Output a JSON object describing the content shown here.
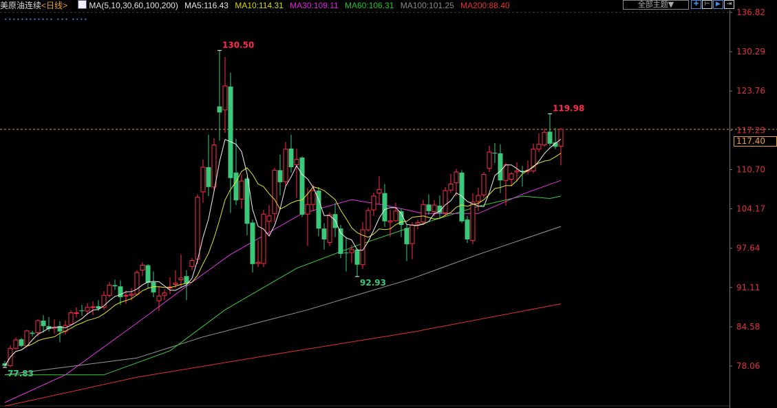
{
  "header": {
    "title": "美原油连续",
    "period": "<日线>",
    "ma_params": "MA(5,10,30,60,100,200)",
    "ma_values": [
      {
        "label": "MA5:116.43",
        "color": "#e6e6e6"
      },
      {
        "label": "MA10:114.31",
        "color": "#d8d800"
      },
      {
        "label": "MA30:109.11",
        "color": "#e020e0"
      },
      {
        "label": "MA60:106.31",
        "color": "#22c322"
      },
      {
        "label": "MA100:101.25",
        "color": "#8a8a8a"
      },
      {
        "label": "MA200:88.40",
        "color": "#e83030"
      }
    ],
    "theme_button": "全部主题▼",
    "tool_icons": [
      "crosshair-icon",
      "interval-icon",
      "play-icon",
      "exit-icon"
    ],
    "dots": "••••••••••••   •••   ••••"
  },
  "colors": {
    "up": "#ff2d4b",
    "down": "#3cc87a",
    "axis_text": "#e03040",
    "last_price_line": "#e8a030",
    "ma5": "#f0f0f0",
    "ma10": "#e5e52a",
    "ma30": "#e536e5",
    "ma60": "#3ad13a",
    "ma100": "#9a9a9a",
    "ma200": "#e53030"
  },
  "chart_data": {
    "type": "candlestick",
    "ylim": [
      72.5,
      136.82
    ],
    "y_ticks": [
      "136.82",
      "130.29",
      "123.76",
      "117.23",
      "110.70",
      "104.17",
      "97.64",
      "91.11",
      "84.58",
      "78.06"
    ],
    "last_price": "117.40",
    "annotations": [
      {
        "text": "130.50",
        "bar": 40,
        "price": 130.5,
        "kind": "high"
      },
      {
        "text": "119.98",
        "bar": 100,
        "price": 119.98,
        "kind": "high"
      },
      {
        "text": "92.93",
        "bar": 65,
        "price": 92.93,
        "kind": "low"
      },
      {
        "text": "77.83",
        "bar": 1,
        "price": 77.83,
        "kind": "low"
      }
    ],
    "ohlc": [
      [
        78.5,
        78.9,
        77.83,
        78.1
      ],
      [
        78.1,
        81.5,
        77.9,
        81.0
      ],
      [
        81.0,
        82.8,
        80.8,
        82.4
      ],
      [
        82.5,
        82.7,
        81.2,
        81.4
      ],
      [
        81.4,
        84.1,
        81.3,
        83.9
      ],
      [
        83.6,
        83.9,
        83.0,
        83.4
      ],
      [
        83.6,
        85.8,
        83.0,
        85.6
      ],
      [
        85.6,
        86.5,
        83.6,
        84.7
      ],
      [
        84.7,
        86.2,
        83.8,
        84.2
      ],
      [
        84.3,
        85.8,
        83.4,
        84.5
      ],
      [
        84.7,
        85.5,
        82.0,
        83.8
      ],
      [
        83.8,
        85.6,
        83.3,
        84.8
      ],
      [
        85.0,
        87.3,
        84.8,
        86.9
      ],
      [
        86.8,
        87.8,
        86.1,
        86.9
      ],
      [
        87.3,
        88.2,
        86.4,
        87.2
      ],
      [
        87.2,
        88.5,
        86.6,
        87.8
      ],
      [
        87.8,
        88.8,
        86.5,
        87.9
      ],
      [
        88.0,
        89.0,
        87.2,
        87.6
      ],
      [
        87.8,
        90.5,
        87.4,
        89.8
      ],
      [
        89.8,
        92.0,
        89.5,
        91.5
      ],
      [
        91.5,
        92.4,
        90.7,
        91.3
      ],
      [
        91.3,
        92.3,
        88.2,
        89.5
      ],
      [
        89.7,
        90.6,
        88.4,
        89.8
      ],
      [
        89.8,
        91.0,
        89.0,
        90.0
      ],
      [
        90.0,
        94.0,
        89.7,
        93.6
      ],
      [
        94.0,
        95.3,
        93.0,
        94.8
      ],
      [
        94.8,
        95.0,
        91.0,
        91.9
      ],
      [
        92.0,
        93.8,
        89.5,
        90.3
      ],
      [
        88.9,
        91.3,
        87.2,
        89.7
      ],
      [
        89.8,
        90.8,
        89.0,
        90.2
      ],
      [
        91.0,
        92.8,
        90.0,
        91.2
      ],
      [
        91.6,
        94.0,
        91.0,
        91.8
      ],
      [
        92.4,
        96.6,
        91.0,
        92.7
      ],
      [
        93.0,
        94.0,
        89.0,
        91.8
      ],
      [
        94.6,
        96.0,
        94.0,
        95.6
      ],
      [
        95.8,
        106.6,
        95.0,
        106.1
      ],
      [
        107.0,
        112.4,
        105.2,
        111.1
      ],
      [
        111.1,
        116.5,
        106.3,
        107.8
      ],
      [
        107.8,
        115.9,
        107.0,
        114.8
      ],
      [
        121.2,
        130.5,
        115.5,
        120.2
      ],
      [
        120.6,
        129.4,
        116.8,
        124.6
      ],
      [
        124.5,
        126.8,
        103.5,
        109.3
      ],
      [
        110.2,
        115.8,
        104.8,
        105.6
      ],
      [
        105.8,
        109.9,
        104.2,
        108.8
      ],
      [
        109.2,
        109.5,
        99.8,
        101.7
      ],
      [
        101.9,
        102.4,
        93.6,
        95.0
      ],
      [
        95.1,
        98.9,
        94.5,
        95.3
      ],
      [
        95.1,
        104.0,
        94.5,
        103.3
      ],
      [
        102.1,
        104.8,
        99.9,
        103.0
      ],
      [
        103.4,
        111.0,
        102.0,
        110.6
      ],
      [
        110.6,
        113.2,
        106.4,
        108.6
      ],
      [
        108.7,
        115.3,
        107.9,
        114.1
      ],
      [
        114.2,
        116.5,
        110.2,
        111.1
      ],
      [
        111.5,
        114.2,
        106.0,
        112.4
      ],
      [
        112.7,
        112.9,
        102.8,
        103.2
      ],
      [
        103.3,
        107.6,
        98.0,
        104.9
      ],
      [
        104.9,
        108.2,
        103.8,
        107.2
      ],
      [
        107.2,
        107.8,
        99.6,
        100.9
      ],
      [
        100.9,
        101.8,
        97.4,
        99.1
      ],
      [
        98.6,
        103.6,
        98.0,
        103.2
      ],
      [
        103.3,
        105.2,
        99.5,
        101.0
      ],
      [
        100.9,
        101.5,
        96.0,
        96.7
      ],
      [
        96.9,
        99.5,
        93.8,
        96.8
      ],
      [
        96.9,
        98.2,
        95.2,
        97.4
      ],
      [
        97.4,
        97.6,
        92.93,
        94.9
      ],
      [
        94.9,
        102.0,
        94.2,
        100.7
      ],
      [
        100.7,
        104.4,
        100.4,
        103.9
      ],
      [
        104.0,
        106.9,
        103.0,
        106.3
      ],
      [
        106.8,
        109.6,
        105.0,
        107.4
      ],
      [
        106.8,
        108.3,
        101.2,
        102.1
      ],
      [
        102.0,
        104.0,
        99.5,
        102.2
      ],
      [
        102.2,
        105.2,
        102.0,
        103.8
      ],
      [
        103.8,
        104.2,
        99.5,
        101.5
      ],
      [
        101.0,
        101.5,
        95.5,
        98.3
      ],
      [
        98.4,
        102.0,
        95.8,
        101.5
      ],
      [
        101.6,
        102.4,
        100.8,
        101.9
      ],
      [
        102.0,
        105.7,
        101.5,
        104.9
      ],
      [
        104.9,
        106.6,
        103.2,
        103.8
      ],
      [
        103.7,
        105.6,
        103.0,
        104.8
      ],
      [
        104.7,
        106.4,
        102.5,
        103.5
      ],
      [
        103.5,
        107.8,
        102.8,
        107.2
      ],
      [
        107.3,
        110.0,
        106.8,
        108.3
      ],
      [
        108.5,
        110.8,
        106.3,
        110.3
      ],
      [
        110.2,
        110.6,
        101.8,
        102.1
      ],
      [
        102.4,
        103.0,
        98.5,
        99.1
      ],
      [
        98.9,
        106.8,
        98.3,
        105.3
      ],
      [
        105.4,
        107.7,
        103.8,
        106.4
      ],
      [
        106.5,
        110.3,
        106.0,
        109.9
      ],
      [
        110.9,
        114.7,
        110.3,
        113.6
      ],
      [
        113.5,
        115.1,
        111.8,
        113.4
      ],
      [
        113.4,
        114.9,
        106.8,
        108.9
      ],
      [
        108.9,
        111.8,
        104.7,
        111.5
      ],
      [
        109.1,
        110.3,
        107.9,
        110.0
      ],
      [
        110.3,
        111.9,
        108.7,
        110.5
      ],
      [
        110.5,
        111.3,
        107.9,
        110.3
      ],
      [
        110.4,
        112.2,
        109.9,
        110.6
      ],
      [
        110.5,
        115.0,
        110.1,
        114.1
      ],
      [
        114.1,
        116.7,
        113.6,
        114.9
      ],
      [
        114.8,
        117.5,
        114.5,
        116.9
      ],
      [
        117.0,
        119.98,
        114.6,
        115.0
      ],
      [
        115.2,
        117.6,
        114.1,
        114.5
      ],
      [
        114.6,
        117.6,
        111.4,
        117.4
      ]
    ],
    "ma_series": {
      "ma30": [
        [
          1,
          72
        ],
        [
          12,
          76.6
        ],
        [
          25,
          85.2
        ],
        [
          35,
          92
        ],
        [
          42,
          96.6
        ],
        [
          55,
          103.4
        ],
        [
          64,
          105.7
        ],
        [
          70,
          104.8
        ],
        [
          77,
          103.4
        ],
        [
          87,
          103.4
        ],
        [
          95,
          106.6
        ],
        [
          102,
          108.9
        ]
      ],
      "ma60": [
        [
          1,
          76.6
        ],
        [
          19,
          76.6
        ],
        [
          31,
          80.6
        ],
        [
          41,
          87.4
        ],
        [
          54,
          94.3
        ],
        [
          65,
          98.1
        ],
        [
          75,
          101.2
        ],
        [
          87,
          104.6
        ],
        [
          95,
          106.3
        ],
        [
          100,
          105.9
        ],
        [
          102,
          106.3
        ]
      ],
      "ma100": [
        [
          1,
          76.6
        ],
        [
          25,
          79.4
        ],
        [
          37,
          82.9
        ],
        [
          56,
          87.4
        ],
        [
          75,
          92.6
        ],
        [
          87,
          96.6
        ],
        [
          102,
          101.25
        ]
      ],
      "ma200": [
        [
          1,
          71.4
        ],
        [
          25,
          76.2
        ],
        [
          50,
          80.0
        ],
        [
          75,
          83.7
        ],
        [
          102,
          88.4
        ]
      ]
    }
  }
}
